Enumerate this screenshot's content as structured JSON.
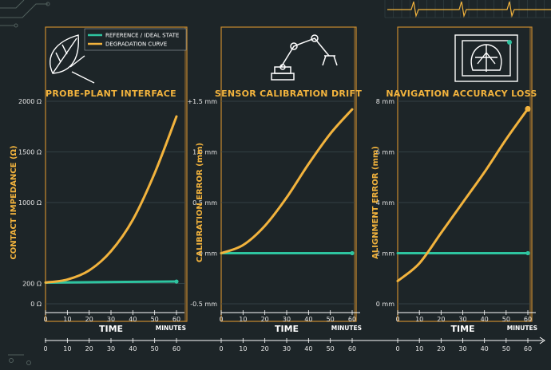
{
  "colors": {
    "background": "#1d2528",
    "reference": "#2ec4a0",
    "degradation": "#f2b33d",
    "frame": "#c98a2e",
    "grid": "#3a4a4c",
    "text": "#e6e6e6"
  },
  "legend": {
    "reference_label": "REFERENCE / IDEAL STATE",
    "degradation_label": "DEGRADATION CURVE"
  },
  "chart_data": [
    {
      "type": "line",
      "title": "PROBE-PLANT INTERFACE",
      "icon": "leaf-probe-icon",
      "ylabel": "CONTACT IMPEDANCE (Ω)",
      "xlabel": "TIME",
      "x_unit": "MINUTES",
      "xlim": [
        0,
        60
      ],
      "ylim": [
        0,
        2000
      ],
      "x_ticks": [
        "0",
        "10",
        "20",
        "30",
        "40",
        "50",
        "60"
      ],
      "y_ticks": [
        {
          "value": 0,
          "label": "0 Ω"
        },
        {
          "value": 200,
          "label": "200 Ω"
        },
        {
          "value": 1000,
          "label": "1000 Ω"
        },
        {
          "value": 1500,
          "label": "1500 Ω"
        },
        {
          "value": 2000,
          "label": "2000 Ω"
        }
      ],
      "series": [
        {
          "role": "reference",
          "x": [
            0,
            60
          ],
          "y": [
            210,
            220
          ],
          "end_marker": true
        },
        {
          "role": "degradation",
          "x": [
            0,
            10,
            20,
            30,
            40,
            50,
            60
          ],
          "y": [
            210,
            240,
            330,
            520,
            830,
            1290,
            1850
          ],
          "end_marker": false
        }
      ]
    },
    {
      "type": "line",
      "title": "SENSOR CALIBRATION DRIFT",
      "icon": "robot-arm-icon",
      "ylabel": "CALIBRATION ERROR (mm)",
      "xlabel": "TIME",
      "x_unit": "MINUTES",
      "xlim": [
        0,
        60
      ],
      "ylim": [
        -0.5,
        1.5
      ],
      "x_ticks": [
        "0",
        "10",
        "20",
        "30",
        "40",
        "50",
        "60"
      ],
      "y_ticks": [
        {
          "value": -0.5,
          "label": "-0.5 mm"
        },
        {
          "value": 0,
          "label": "0 mm"
        },
        {
          "value": 0.5,
          "label": "0.5 mm"
        },
        {
          "value": 1.0,
          "label": "1.0 mm"
        },
        {
          "value": 1.5,
          "label": "+1.5 mm"
        }
      ],
      "series": [
        {
          "role": "reference",
          "x": [
            0,
            60
          ],
          "y": [
            0,
            0
          ],
          "end_marker": true
        },
        {
          "role": "degradation",
          "x": [
            0,
            10,
            20,
            30,
            40,
            50,
            60
          ],
          "y": [
            0,
            0.08,
            0.27,
            0.55,
            0.88,
            1.18,
            1.42
          ],
          "end_marker": false
        }
      ]
    },
    {
      "type": "line",
      "title": "NAVIGATION ACCURACY LOSS",
      "icon": "map-navigation-icon",
      "ylabel": "ALIGNMENT ERROR (mm)",
      "xlabel": "TIME",
      "x_unit": "MINUTES",
      "xlim": [
        0,
        60
      ],
      "ylim": [
        0,
        8
      ],
      "x_ticks": [
        "0",
        "10",
        "20",
        "30",
        "40",
        "50",
        "60"
      ],
      "y_ticks": [
        {
          "value": 0,
          "label": "0 mm"
        },
        {
          "value": 2,
          "label": "2 mm"
        },
        {
          "value": 4,
          "label": "4 mm"
        },
        {
          "value": 6,
          "label": "6 mm"
        },
        {
          "value": 8,
          "label": "8 mm"
        }
      ],
      "series": [
        {
          "role": "reference",
          "x": [
            0,
            60
          ],
          "y": [
            2,
            2
          ],
          "end_marker": true
        },
        {
          "role": "degradation",
          "x": [
            0,
            10,
            20,
            30,
            40,
            50,
            60
          ],
          "y": [
            0.9,
            1.6,
            2.8,
            4.0,
            5.2,
            6.5,
            7.7
          ],
          "end_marker": true
        }
      ]
    }
  ],
  "timeline": {
    "ticks": [
      "0",
      "10",
      "20",
      "30",
      "40",
      "50",
      "60",
      "0",
      "10",
      "20",
      "30",
      "40",
      "50",
      "60",
      "0",
      "10",
      "20",
      "30",
      "40",
      "50",
      "60"
    ]
  }
}
